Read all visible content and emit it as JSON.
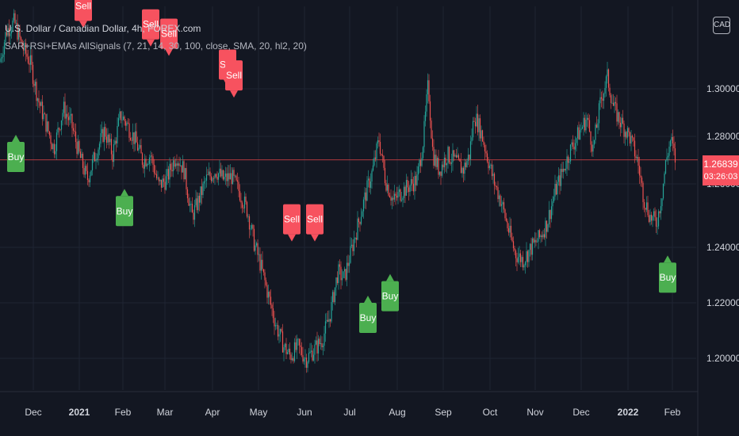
{
  "legend": {
    "symbol_line": "U.S. Dollar / Canadian Dollar, 4h, FOREX.com",
    "indicator_line": "SAR+RSI+EMAs AllSignals (7, 21, 14, 30, 100, close, SMA, 20, hl2, 20)"
  },
  "currency_badge": "CAD",
  "last_price": {
    "value": "1.26839",
    "countdown": "03:26:03"
  },
  "colors": {
    "background": "#131722",
    "grid": "#1f2433",
    "up_candle": "#26a69a",
    "down_candle": "#ef5350",
    "buy_signal": "#4caf50",
    "sell_signal": "#f7525f",
    "price_line": "#b03a3f",
    "axis_text": "#d1d4dc"
  },
  "chart_data": {
    "type": "candlestick",
    "symbol": "USDCAD",
    "timeframe": "4h",
    "x_ticks": [
      "Dec",
      "2021",
      "Feb",
      "Mar",
      "Apr",
      "May",
      "Jun",
      "Jul",
      "Aug",
      "Sep",
      "Oct",
      "Nov",
      "Dec",
      "2022",
      "Feb"
    ],
    "y_ticks": [
      "1.30000",
      "1.28000",
      "1.26000",
      "1.24000",
      "1.22000",
      "1.20000"
    ],
    "ylim": [
      1.194,
      1.318
    ],
    "last_price": 1.26839,
    "price_path": [
      [
        0,
        1.3
      ],
      [
        8,
        1.31
      ],
      [
        18,
        1.313
      ],
      [
        28,
        1.305
      ],
      [
        38,
        1.3
      ],
      [
        48,
        1.288
      ],
      [
        58,
        1.28
      ],
      [
        68,
        1.272
      ],
      [
        80,
        1.285
      ],
      [
        90,
        1.28
      ],
      [
        100,
        1.27
      ],
      [
        110,
        1.262
      ],
      [
        120,
        1.27
      ],
      [
        132,
        1.278
      ],
      [
        142,
        1.27
      ],
      [
        152,
        1.283
      ],
      [
        160,
        1.28
      ],
      [
        170,
        1.275
      ],
      [
        180,
        1.268
      ],
      [
        190,
        1.27
      ],
      [
        200,
        1.26
      ],
      [
        210,
        1.262
      ],
      [
        222,
        1.27
      ],
      [
        232,
        1.265
      ],
      [
        242,
        1.25
      ],
      [
        250,
        1.255
      ],
      [
        260,
        1.262
      ],
      [
        272,
        1.265
      ],
      [
        282,
        1.262
      ],
      [
        292,
        1.263
      ],
      [
        302,
        1.258
      ],
      [
        312,
        1.252
      ],
      [
        320,
        1.242
      ],
      [
        328,
        1.235
      ],
      [
        338,
        1.225
      ],
      [
        348,
        1.215
      ],
      [
        358,
        1.208
      ],
      [
        366,
        1.205
      ],
      [
        376,
        1.208
      ],
      [
        386,
        1.204
      ],
      [
        396,
        1.207
      ],
      [
        406,
        1.21
      ],
      [
        416,
        1.218
      ],
      [
        426,
        1.232
      ],
      [
        434,
        1.23
      ],
      [
        444,
        1.24
      ],
      [
        452,
        1.248
      ],
      [
        462,
        1.258
      ],
      [
        470,
        1.265
      ],
      [
        478,
        1.275
      ],
      [
        486,
        1.262
      ],
      [
        496,
        1.255
      ],
      [
        506,
        1.258
      ],
      [
        516,
        1.26
      ],
      [
        526,
        1.262
      ],
      [
        534,
        1.275
      ],
      [
        540,
        1.293
      ],
      [
        546,
        1.27
      ],
      [
        554,
        1.265
      ],
      [
        564,
        1.27
      ],
      [
        574,
        1.268
      ],
      [
        584,
        1.265
      ],
      [
        592,
        1.27
      ],
      [
        598,
        1.283
      ],
      [
        606,
        1.278
      ],
      [
        614,
        1.27
      ],
      [
        622,
        1.262
      ],
      [
        632,
        1.255
      ],
      [
        642,
        1.245
      ],
      [
        650,
        1.238
      ],
      [
        660,
        1.236
      ],
      [
        670,
        1.24
      ],
      [
        680,
        1.243
      ],
      [
        690,
        1.248
      ],
      [
        700,
        1.258
      ],
      [
        710,
        1.265
      ],
      [
        720,
        1.272
      ],
      [
        730,
        1.277
      ],
      [
        740,
        1.282
      ],
      [
        748,
        1.272
      ],
      [
        758,
        1.288
      ],
      [
        766,
        1.295
      ],
      [
        774,
        1.285
      ],
      [
        784,
        1.28
      ],
      [
        794,
        1.276
      ],
      [
        804,
        1.268
      ],
      [
        812,
        1.256
      ],
      [
        820,
        1.25
      ],
      [
        828,
        1.248
      ],
      [
        834,
        1.256
      ],
      [
        840,
        1.268
      ],
      [
        846,
        1.275
      ],
      [
        852,
        1.268
      ]
    ],
    "signals": [
      {
        "type": "Buy",
        "x": 20,
        "price": 1.2765,
        "dir": "up"
      },
      {
        "type": "Sell",
        "x": 105,
        "price": 1.311,
        "dir": "down"
      },
      {
        "type": "Sell",
        "x": 190,
        "price": 1.305,
        "dir": "down"
      },
      {
        "type": "Sell",
        "x": 213,
        "price": 1.302,
        "dir": "down"
      },
      {
        "type": "Sell",
        "x": 287,
        "price": 1.292,
        "dir": "down"
      },
      {
        "type": "Sell",
        "x": 295,
        "price": 1.2885,
        "dir": "down"
      },
      {
        "type": "Buy",
        "x": 157,
        "price": 1.259,
        "dir": "up"
      },
      {
        "type": "Sell",
        "x": 368,
        "price": 1.242,
        "dir": "down"
      },
      {
        "type": "Sell",
        "x": 397,
        "price": 1.242,
        "dir": "down"
      },
      {
        "type": "Buy",
        "x": 464,
        "price": 1.2245,
        "dir": "up"
      },
      {
        "type": "Buy",
        "x": 492,
        "price": 1.2315,
        "dir": "up"
      },
      {
        "type": "Buy",
        "x": 842,
        "price": 1.2375,
        "dir": "up"
      }
    ]
  }
}
